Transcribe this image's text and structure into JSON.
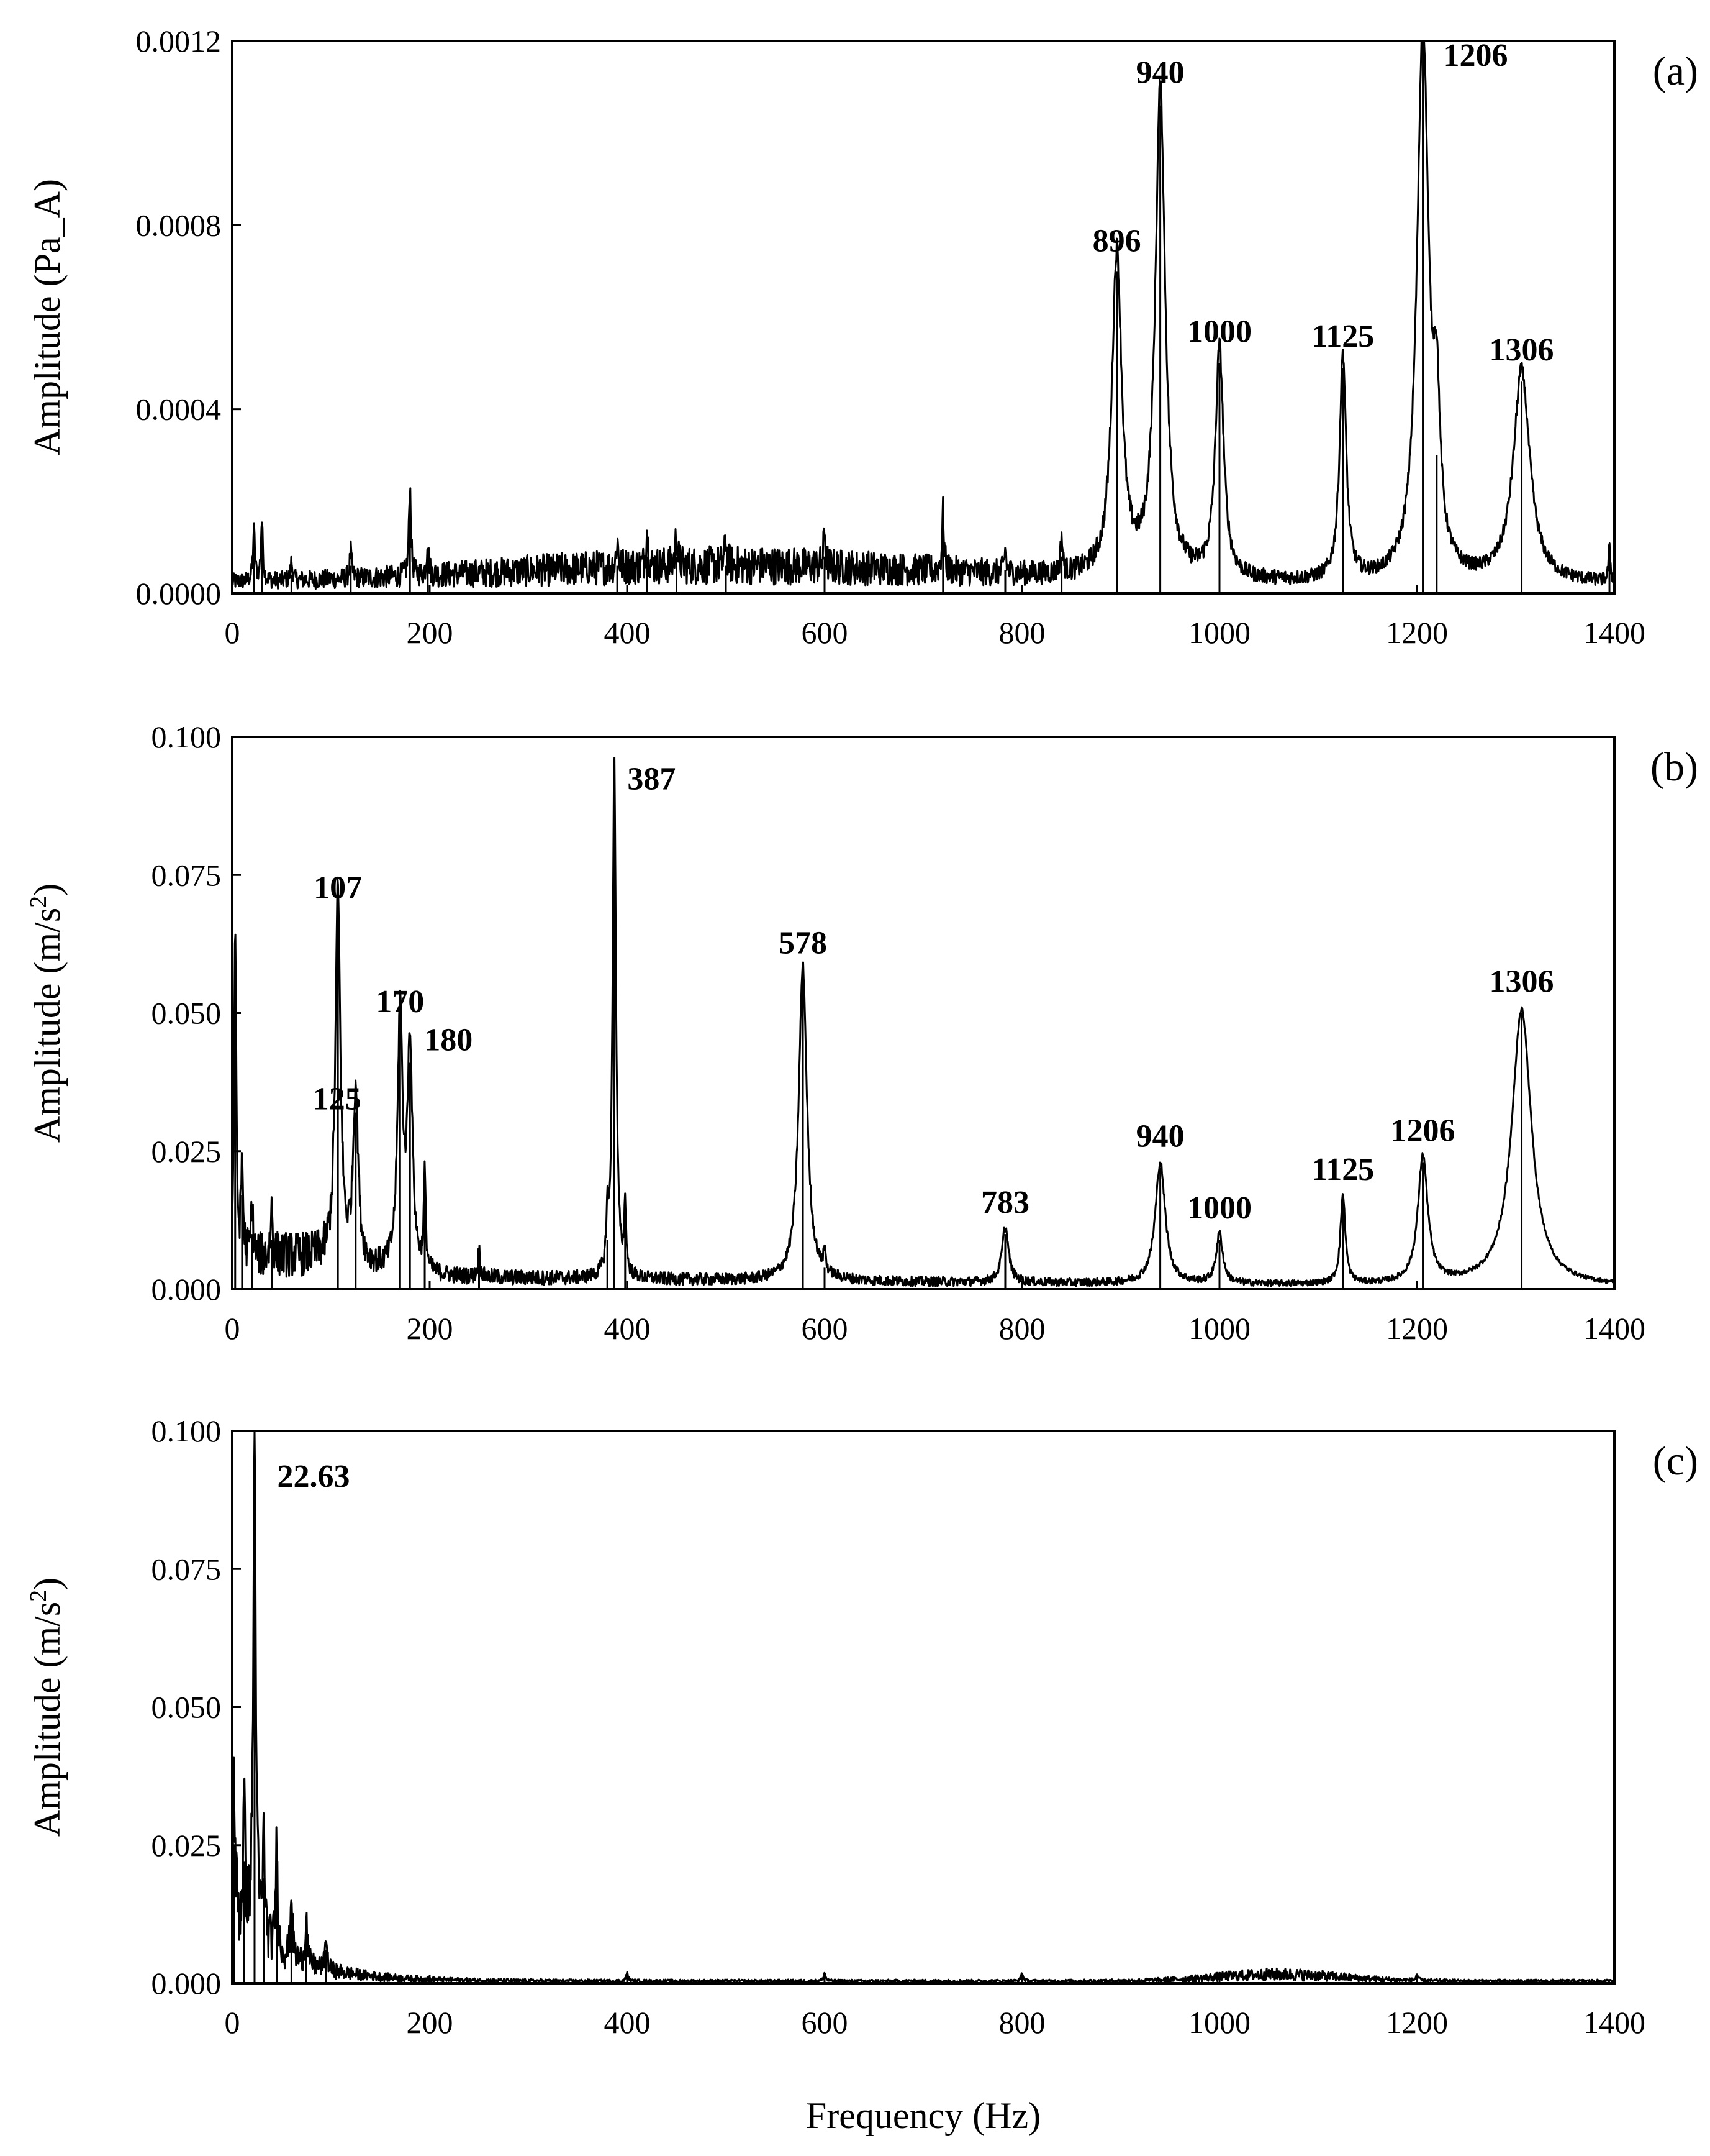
{
  "chart_data": [
    {
      "type": "line",
      "panel_tag": "(a)",
      "ylabel": "Amplitude (Pa_A)",
      "ylabel_sup": "",
      "ylabel_tail": "",
      "xlabel": "",
      "xlim": [
        0,
        1400
      ],
      "ylim": [
        0,
        0.0012
      ],
      "x_ticks": [
        0,
        200,
        400,
        600,
        800,
        1000,
        1200,
        1400
      ],
      "y_ticks": [
        "0.0000",
        "0.0004",
        "0.0008",
        "0.0012"
      ],
      "y_tick_values": [
        0,
        0.0004,
        0.0008,
        0.0012
      ],
      "baseline": {
        "from_hz": 0,
        "to_hz": 1400,
        "start_level": 2e-05,
        "end_level": 2e-05,
        "hump_center": 500,
        "hump_width": 350,
        "hump_level": 4e-05
      },
      "peaks": [
        {
          "f": 22,
          "a": 0.00011
        },
        {
          "f": 30,
          "a": 0.00013
        },
        {
          "f": 60,
          "a": 4e-05
        },
        {
          "f": 120,
          "a": 6e-05
        },
        {
          "f": 180,
          "a": 0.0002
        },
        {
          "f": 198,
          "a": 8e-05
        },
        {
          "f": 390,
          "a": 6e-05
        },
        {
          "f": 420,
          "a": 8e-05
        },
        {
          "f": 450,
          "a": 8e-05
        },
        {
          "f": 500,
          "a": 6e-05
        },
        {
          "f": 600,
          "a": 8e-05
        },
        {
          "f": 720,
          "a": 0.00013
        },
        {
          "f": 783,
          "a": 5e-05
        },
        {
          "f": 840,
          "a": 8e-05
        },
        {
          "f": 896,
          "a": 0.0007,
          "w": 6
        },
        {
          "f": 940,
          "a": 0.00106,
          "w": 6
        },
        {
          "f": 1000,
          "a": 0.0005,
          "w": 5
        },
        {
          "f": 1125,
          "a": 0.00049,
          "w": 4
        },
        {
          "f": 1206,
          "a": 0.0012,
          "w": 7
        },
        {
          "f": 1220,
          "a": 0.0003,
          "w": 4
        },
        {
          "f": 1306,
          "a": 0.00046,
          "w": 10
        },
        {
          "f": 1395,
          "a": 7e-05
        }
      ],
      "peak_labels": [
        {
          "text": "896",
          "f": 896,
          "a": 0.0007
        },
        {
          "text": "940",
          "f": 940,
          "a": 0.00106
        },
        {
          "text": "1000",
          "f": 1000,
          "a": 0.0005
        },
        {
          "text": "1125",
          "f": 1125,
          "a": 0.00049
        },
        {
          "text": "1206",
          "f": 1206,
          "a": 0.0012
        },
        {
          "text": "1306",
          "f": 1306,
          "a": 0.00046
        }
      ]
    },
    {
      "type": "line",
      "panel_tag": "(b)",
      "ylabel": "Amplitude (m/s",
      "ylabel_sup": "2",
      "ylabel_tail": ")",
      "xlabel": "",
      "xlim": [
        0,
        1400
      ],
      "ylim": [
        0,
        0.1
      ],
      "x_ticks": [
        0,
        200,
        400,
        600,
        800,
        1000,
        1200,
        1400
      ],
      "y_ticks": [
        "0.000",
        "0.025",
        "0.050",
        "0.075",
        "0.100"
      ],
      "y_tick_values": [
        0,
        0.025,
        0.05,
        0.075,
        0.1
      ],
      "baseline": {
        "from_hz": 0,
        "to_hz": 1400,
        "start_level": 0.004,
        "end_level": 0.0005,
        "hump_center": 60,
        "hump_width": 80,
        "hump_level": 0.003
      },
      "peaks": [
        {
          "f": 3,
          "a": 0.062
        },
        {
          "f": 10,
          "a": 0.017
        },
        {
          "f": 20,
          "a": 0.01
        },
        {
          "f": 40,
          "a": 0.009
        },
        {
          "f": 107,
          "a": 0.067,
          "w": 3
        },
        {
          "f": 125,
          "a": 0.032,
          "w": 3
        },
        {
          "f": 170,
          "a": 0.047,
          "w": 3
        },
        {
          "f": 180,
          "a": 0.041,
          "w": 3
        },
        {
          "f": 195,
          "a": 0.017
        },
        {
          "f": 250,
          "a": 0.005
        },
        {
          "f": 380,
          "a": 0.009
        },
        {
          "f": 387,
          "a": 0.095,
          "w": 2
        },
        {
          "f": 398,
          "a": 0.012
        },
        {
          "f": 578,
          "a": 0.057,
          "w": 5
        },
        {
          "f": 600,
          "a": 0.004
        },
        {
          "f": 783,
          "a": 0.01,
          "w": 4
        },
        {
          "f": 940,
          "a": 0.022,
          "w": 6
        },
        {
          "f": 1000,
          "a": 0.009,
          "w": 4
        },
        {
          "f": 1125,
          "a": 0.016,
          "w": 3
        },
        {
          "f": 1206,
          "a": 0.023,
          "w": 6
        },
        {
          "f": 1306,
          "a": 0.05,
          "w": 12
        }
      ],
      "peak_labels": [
        {
          "text": "107",
          "f": 107,
          "a": 0.067
        },
        {
          "text": "125",
          "f": 125,
          "a": 0.032
        },
        {
          "text": "170",
          "f": 170,
          "a": 0.047
        },
        {
          "text": "180",
          "f": 180,
          "a": 0.041
        },
        {
          "text": "387",
          "f": 387,
          "a": 0.095
        },
        {
          "text": "578",
          "f": 578,
          "a": 0.057
        },
        {
          "text": "783",
          "f": 783,
          "a": 0.01
        },
        {
          "text": "940",
          "f": 940,
          "a": 0.022
        },
        {
          "text": "1000",
          "f": 1000,
          "a": 0.009
        },
        {
          "text": "1125",
          "f": 1125,
          "a": 0.016
        },
        {
          "text": "1206",
          "f": 1206,
          "a": 0.023
        },
        {
          "text": "1306",
          "f": 1306,
          "a": 0.05
        }
      ]
    },
    {
      "type": "line",
      "panel_tag": "(c)",
      "ylabel": "Amplitude (m/s",
      "ylabel_sup": "2",
      "ylabel_tail": ")",
      "xlabel": "Frequency (Hz)",
      "xlim": [
        0,
        1400
      ],
      "ylim": [
        0,
        0.1
      ],
      "x_ticks": [
        0,
        200,
        400,
        600,
        800,
        1000,
        1200,
        1400
      ],
      "y_ticks": [
        "0.000",
        "0.025",
        "0.050",
        "0.075",
        "0.100"
      ],
      "y_tick_values": [
        0,
        0.025,
        0.05,
        0.075,
        0.1
      ],
      "baseline": {
        "from_hz": 0,
        "to_hz": 1400,
        "start_level": 0.012,
        "end_level": 0.0004,
        "hump_center": 1060,
        "hump_width": 90,
        "hump_level": 0.0012
      },
      "peaks": [
        {
          "f": 2,
          "a": 0.025
        },
        {
          "f": 12,
          "a": 0.022
        },
        {
          "f": 22.63,
          "a": 0.091,
          "w": 1.5
        },
        {
          "f": 32,
          "a": 0.019
        },
        {
          "f": 45,
          "a": 0.02
        },
        {
          "f": 60,
          "a": 0.012
        },
        {
          "f": 75,
          "a": 0.009
        },
        {
          "f": 95,
          "a": 0.006
        },
        {
          "f": 400,
          "a": 0.0015
        },
        {
          "f": 600,
          "a": 0.0015
        },
        {
          "f": 800,
          "a": 0.0015
        },
        {
          "f": 1200,
          "a": 0.0012
        }
      ],
      "peak_labels": [
        {
          "text": "22.63",
          "f": 22.63,
          "a": 0.091
        }
      ]
    }
  ]
}
